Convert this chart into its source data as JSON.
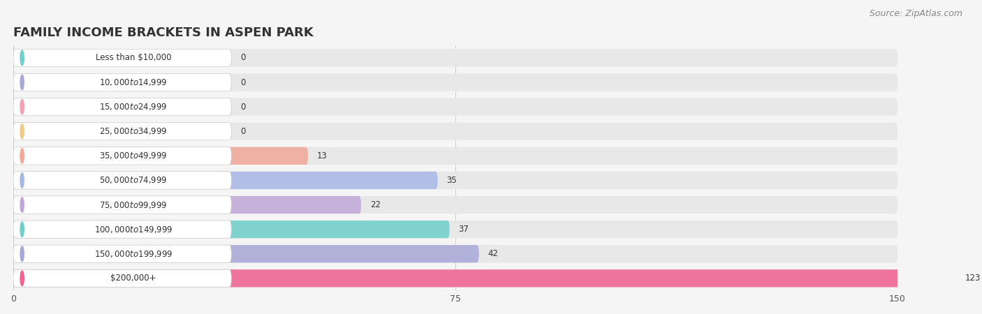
{
  "title": "FAMILY INCOME BRACKETS IN ASPEN PARK",
  "source": "Source: ZipAtlas.com",
  "categories": [
    "Less than $10,000",
    "$10,000 to $14,999",
    "$15,000 to $24,999",
    "$25,000 to $34,999",
    "$35,000 to $49,999",
    "$50,000 to $74,999",
    "$75,000 to $99,999",
    "$100,000 to $149,999",
    "$150,000 to $199,999",
    "$200,000+"
  ],
  "values": [
    0,
    0,
    0,
    0,
    13,
    35,
    22,
    37,
    42,
    123
  ],
  "bar_colors": [
    "#6ecfca",
    "#a8a8d8",
    "#f4a0b0",
    "#f5c98a",
    "#f0a898",
    "#a8b8e8",
    "#c0a8d8",
    "#6ecfca",
    "#a8a8d8",
    "#f06090"
  ],
  "label_bg_colors": [
    "#6ecfca",
    "#a8a8d8",
    "#f4a0b0",
    "#f5c98a",
    "#f0a898",
    "#a8b8e8",
    "#c0a8d8",
    "#6ecfca",
    "#a8a8d8",
    "#f06090"
  ],
  "xlim": [
    0,
    150
  ],
  "xticks": [
    0,
    75,
    150
  ],
  "background_color": "#f5f5f5",
  "bar_background_color": "#e8e8e8",
  "title_fontsize": 13,
  "source_fontsize": 9
}
